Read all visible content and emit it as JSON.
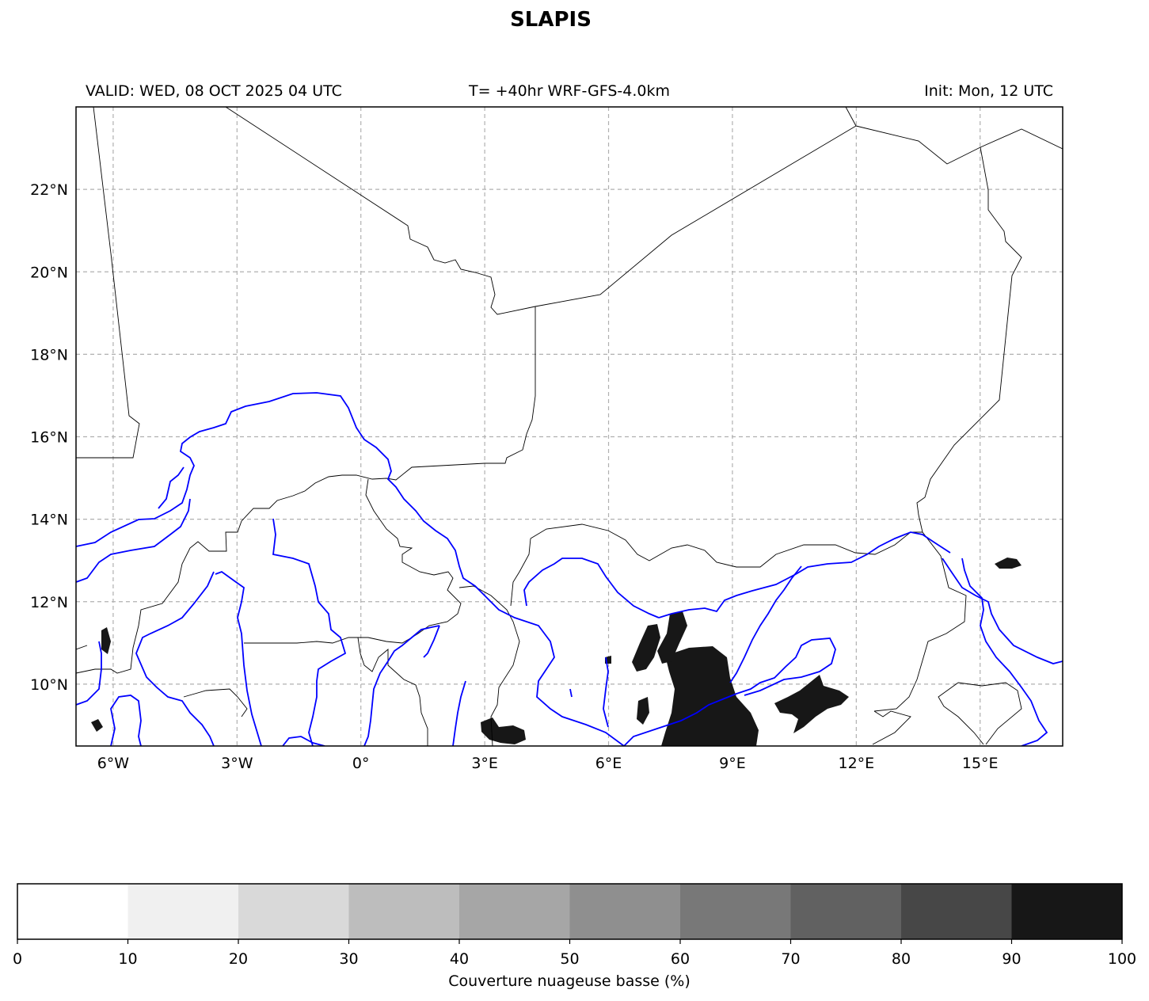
{
  "title": "SLAPIS",
  "header": {
    "valid": "VALID: WED, 08 OCT 2025 04 UTC",
    "run": "T= +40hr WRF-GFS-4.0km",
    "init": "Init: Mon, 12 UTC"
  },
  "map": {
    "lon_range": [
      -6.9,
      17.0
    ],
    "lat_range": [
      8.5,
      24.0
    ],
    "lon_ticks": [
      {
        "value": -6,
        "label": "6°W"
      },
      {
        "value": -3,
        "label": "3°W"
      },
      {
        "value": 0,
        "label": "0°"
      },
      {
        "value": 3,
        "label": "3°E"
      },
      {
        "value": 6,
        "label": "6°E"
      },
      {
        "value": 9,
        "label": "9°E"
      },
      {
        "value": 12,
        "label": "12°E"
      },
      {
        "value": 15,
        "label": "15°E"
      }
    ],
    "lat_ticks": [
      {
        "value": 10,
        "label": "10°N"
      },
      {
        "value": 12,
        "label": "12°N"
      },
      {
        "value": 14,
        "label": "14°N"
      },
      {
        "value": 16,
        "label": "16°N"
      },
      {
        "value": 18,
        "label": "18°N"
      },
      {
        "value": 20,
        "label": "20°N"
      },
      {
        "value": 22,
        "label": "22°N"
      }
    ],
    "grid": true,
    "colors": {
      "borders": "#000000",
      "rivers": "#0000ff",
      "cloud": "#171717"
    }
  },
  "colorbar": {
    "label": "Couverture nuageuse basse (%)",
    "ticks": [
      "0",
      "10",
      "20",
      "30",
      "40",
      "50",
      "60",
      "70",
      "80",
      "90",
      "100"
    ],
    "colors": [
      "#ffffff",
      "#f0f0f0",
      "#d9d9d9",
      "#bdbdbd",
      "#a6a6a6",
      "#8f8f8f",
      "#787878",
      "#616161",
      "#474747",
      "#171717"
    ]
  }
}
